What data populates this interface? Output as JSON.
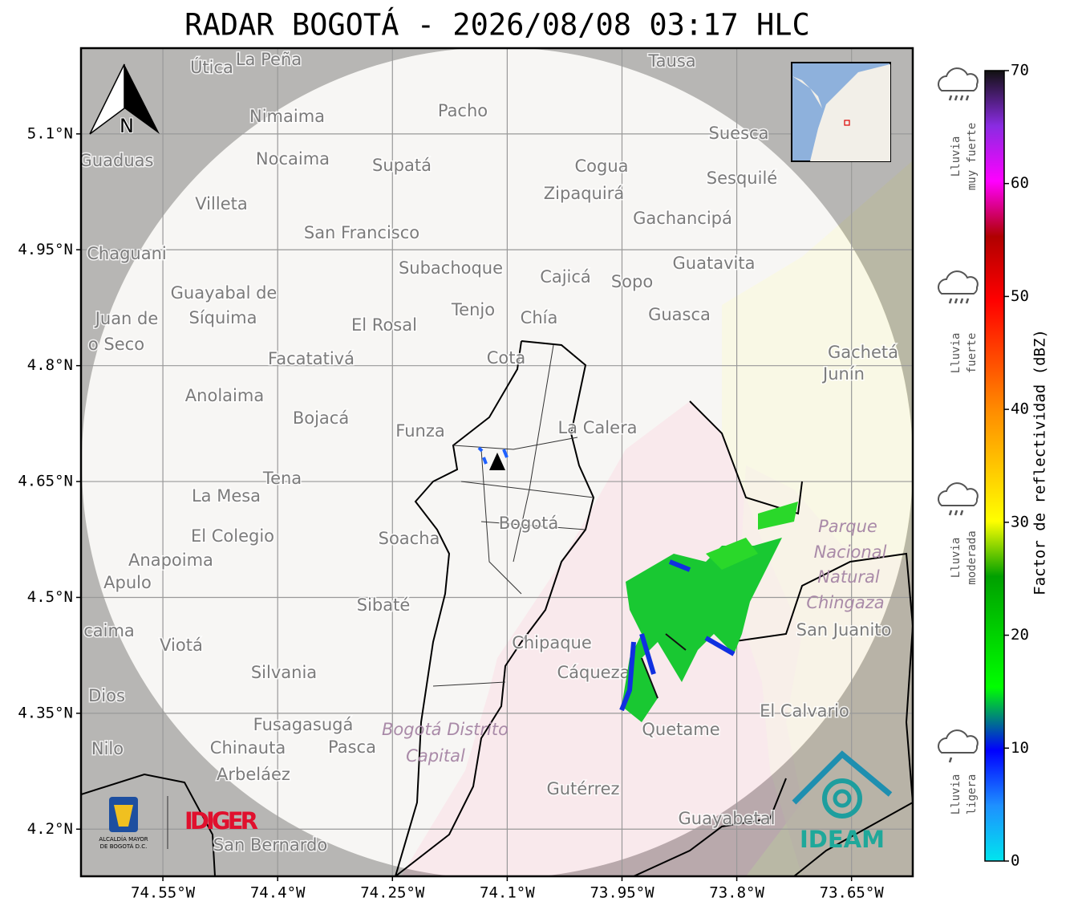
{
  "title": "RADAR BOGOTÁ - 2026/08/08 03:17 HLC",
  "map": {
    "xlim": [
      -74.657,
      -73.57
    ],
    "ylim": [
      4.139,
      5.211
    ],
    "xticks": [
      {
        "value": -74.55,
        "label": "74.55°W"
      },
      {
        "value": -74.4,
        "label": "74.4°W"
      },
      {
        "value": -74.25,
        "label": "74.25°W"
      },
      {
        "value": -74.1,
        "label": "74.1°W"
      },
      {
        "value": -73.95,
        "label": "73.95°W"
      },
      {
        "value": -73.8,
        "label": "73.8°W"
      },
      {
        "value": -73.65,
        "label": "73.65°W"
      }
    ],
    "yticks": [
      {
        "value": 5.1,
        "label": "5.1°N"
      },
      {
        "value": 4.95,
        "label": "4.95°N"
      },
      {
        "value": 4.8,
        "label": "4.8°N"
      },
      {
        "value": 4.65,
        "label": "4.65°N"
      },
      {
        "value": 4.5,
        "label": "4.5°N"
      },
      {
        "value": 4.35,
        "label": "4.35°N"
      },
      {
        "value": 4.2,
        "label": "4.2°N"
      }
    ],
    "north_label": "N",
    "places": [
      "Útica",
      "La Peña",
      "Tausa",
      "Pacho",
      "Nimaima",
      "Guaduas",
      "Nocaima",
      "Supatá",
      "Cogua",
      "Suesca",
      "Sesquilé",
      "Zipaquirá",
      "Villeta",
      "Gachancipá",
      "San Francisco",
      "Chaguani",
      "Guatavita",
      "Subachoque",
      "Cajicá",
      "Sopo",
      "Guayabal de",
      "Síquima",
      "Juan de",
      "Tenjo",
      "Chía",
      "Guasca",
      "El Rosal",
      "o Seco",
      "Facatativá",
      "Cota",
      "Gachetá",
      "Junín",
      "Anolaima",
      "Bojacá",
      "Funza",
      "La Calera",
      "Tena",
      "La Mesa",
      "Bogotá",
      "Soacha",
      "El Colegio",
      "Anapoima",
      "Apulo",
      "Sibaté",
      "San Juanito",
      "caima",
      "Viotá",
      "Chipaque",
      "Silvania",
      "Cáqueza",
      "Dios",
      "El Calvario",
      "Fusagasugá",
      "Quetame",
      "Nilo",
      "Chinauta",
      "Pasca",
      "Arbeláez",
      "Gutérrez",
      "Guayabetal",
      "San Bernardo"
    ],
    "park": [
      "Parque",
      "Nacional",
      "Natural",
      "Chingaza"
    ],
    "district": [
      "Bogotá Distrito",
      "Capital"
    ]
  },
  "colorbar": {
    "label": "Factor de reflectividad (dBZ)",
    "lim": [
      0,
      70
    ],
    "ticks": [
      0,
      10,
      20,
      30,
      40,
      50,
      60,
      70
    ]
  },
  "legend": [
    {
      "lines": [
        "Lluvia",
        "muy fuerte"
      ]
    },
    {
      "lines": [
        "Lluvia",
        "fuerte"
      ]
    },
    {
      "lines": [
        "Lluvia",
        "moderada"
      ]
    },
    {
      "lines": [
        "Lluvia",
        "ligera"
      ]
    }
  ],
  "logos": {
    "alcaldia": [
      "ALCALDÍA MAYOR",
      "DE BOGOTÁ D.C."
    ],
    "idiger": "IDIGER",
    "ideam": "IDEAM"
  }
}
